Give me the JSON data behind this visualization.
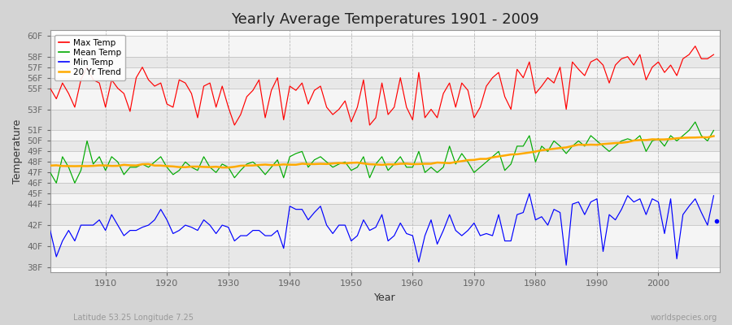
{
  "title": "Yearly Average Temperatures 1901 - 2009",
  "xlabel": "Year",
  "ylabel": "Temperature",
  "subtitle_lat": "Latitude 53.25 Longitude 7.25",
  "credit": "worldspecies.org",
  "years_start": 1901,
  "years_end": 2009,
  "bg_color": "#ffffff",
  "plot_bg_color": "#ffffff",
  "grid_color": "#bbbbbb",
  "band_color_dark": "#e0e0e0",
  "band_color_light": "#f0f0f0",
  "max_color": "#ff0000",
  "mean_color": "#00aa00",
  "min_color": "#0000ff",
  "trend_color": "#ffaa00",
  "legend_labels": [
    "Max Temp",
    "Mean Temp",
    "Min Temp",
    "20 Yr Trend"
  ],
  "ytick_vals": [
    38,
    40,
    42,
    44,
    45,
    46,
    47,
    48,
    49,
    50,
    51,
    53,
    55,
    56,
    57,
    58,
    60
  ],
  "ytick_labels": [
    "38F",
    "40F",
    "42F",
    "44F",
    "45F",
    "46F",
    "47F",
    "48F",
    "49F",
    "50F",
    "51F",
    "53F",
    "55F",
    "56F",
    "57F",
    "58F",
    "60F"
  ],
  "ylim_low": 37.5,
  "ylim_high": 60.5,
  "xlim_low": 1901,
  "xlim_high": 2010,
  "xticks": [
    1910,
    1920,
    1930,
    1940,
    1950,
    1960,
    1970,
    1980,
    1990,
    2000
  ],
  "max_temps": [
    55.0,
    54.0,
    55.5,
    54.5,
    53.2,
    55.8,
    57.0,
    55.8,
    55.5,
    53.2,
    55.8,
    55.0,
    54.5,
    52.8,
    56.0,
    57.0,
    55.8,
    55.2,
    55.5,
    53.5,
    53.2,
    55.8,
    55.5,
    54.5,
    52.2,
    55.2,
    55.5,
    53.2,
    55.2,
    53.2,
    51.5,
    52.5,
    54.2,
    54.8,
    55.8,
    52.2,
    54.8,
    56.0,
    52.0,
    55.2,
    54.8,
    55.5,
    53.5,
    54.8,
    55.2,
    53.2,
    52.5,
    53.0,
    53.8,
    51.8,
    53.2,
    55.8,
    51.5,
    52.2,
    55.5,
    52.5,
    53.2,
    56.0,
    53.2,
    52.0,
    56.5,
    52.2,
    53.0,
    52.2,
    54.5,
    55.5,
    53.2,
    55.5,
    54.8,
    52.2,
    53.2,
    55.2,
    56.0,
    56.5,
    54.2,
    53.0,
    56.8,
    56.0,
    57.5,
    54.5,
    55.2,
    56.0,
    55.5,
    57.0,
    53.0,
    57.5,
    56.8,
    56.2,
    57.5,
    57.8,
    57.2,
    55.5,
    57.2,
    57.8,
    58.0,
    57.2,
    58.2,
    55.8,
    57.0,
    57.5,
    56.5,
    57.2,
    56.2,
    57.8,
    58.2,
    59.0,
    57.8,
    57.8,
    58.2
  ],
  "mean_temps": [
    47.0,
    46.0,
    48.5,
    47.5,
    46.0,
    47.2,
    50.0,
    47.8,
    48.5,
    47.2,
    48.5,
    48.0,
    46.8,
    47.5,
    47.5,
    47.8,
    47.5,
    48.0,
    48.5,
    47.5,
    46.8,
    47.2,
    48.0,
    47.5,
    47.2,
    48.5,
    47.5,
    47.0,
    47.8,
    47.5,
    46.5,
    47.2,
    47.8,
    48.0,
    47.5,
    46.8,
    47.5,
    48.2,
    46.5,
    48.5,
    48.8,
    49.0,
    47.5,
    48.2,
    48.5,
    48.0,
    47.5,
    47.8,
    48.0,
    47.2,
    47.5,
    48.5,
    46.5,
    47.8,
    48.5,
    47.2,
    47.8,
    48.5,
    47.5,
    47.5,
    49.0,
    47.0,
    47.5,
    47.0,
    47.5,
    49.5,
    47.8,
    48.8,
    48.0,
    47.0,
    47.5,
    48.0,
    48.5,
    49.0,
    47.2,
    47.8,
    49.5,
    49.5,
    50.5,
    48.0,
    49.5,
    49.0,
    50.0,
    49.5,
    48.8,
    49.5,
    50.0,
    49.5,
    50.5,
    50.0,
    49.5,
    49.0,
    49.5,
    50.0,
    50.2,
    50.0,
    50.5,
    49.0,
    50.0,
    50.2,
    49.5,
    50.5,
    50.0,
    50.5,
    51.0,
    51.8,
    50.5,
    50.0,
    51.0
  ],
  "min_temps": [
    41.5,
    39.0,
    40.5,
    41.5,
    40.5,
    42.0,
    42.0,
    42.0,
    42.5,
    41.5,
    43.0,
    42.0,
    41.0,
    41.5,
    41.5,
    41.8,
    42.0,
    42.5,
    43.5,
    42.5,
    41.2,
    41.5,
    42.0,
    41.8,
    41.5,
    42.5,
    42.0,
    41.2,
    42.0,
    41.8,
    40.5,
    41.0,
    41.0,
    41.5,
    41.5,
    41.0,
    41.0,
    41.5,
    39.8,
    43.8,
    43.5,
    43.5,
    42.5,
    43.2,
    43.8,
    42.0,
    41.2,
    42.0,
    42.0,
    40.5,
    41.0,
    42.5,
    41.5,
    41.8,
    43.0,
    40.5,
    41.0,
    42.2,
    41.2,
    41.0,
    38.5,
    41.0,
    42.5,
    40.2,
    41.5,
    43.0,
    41.5,
    41.0,
    41.5,
    42.2,
    41.0,
    41.2,
    41.0,
    43.0,
    40.5,
    40.5,
    43.0,
    43.2,
    45.0,
    42.5,
    42.8,
    42.0,
    43.5,
    43.2,
    38.2,
    44.0,
    44.2,
    43.0,
    44.2,
    44.5,
    39.5,
    43.0,
    42.5,
    43.5,
    44.8,
    44.2,
    44.5,
    43.0,
    44.5,
    44.2,
    41.2,
    44.5,
    38.8,
    43.0,
    43.8,
    44.5,
    43.2,
    42.0,
    44.8
  ],
  "dot_year": 2009.5,
  "dot_val": 42.4,
  "trend_window": 20
}
